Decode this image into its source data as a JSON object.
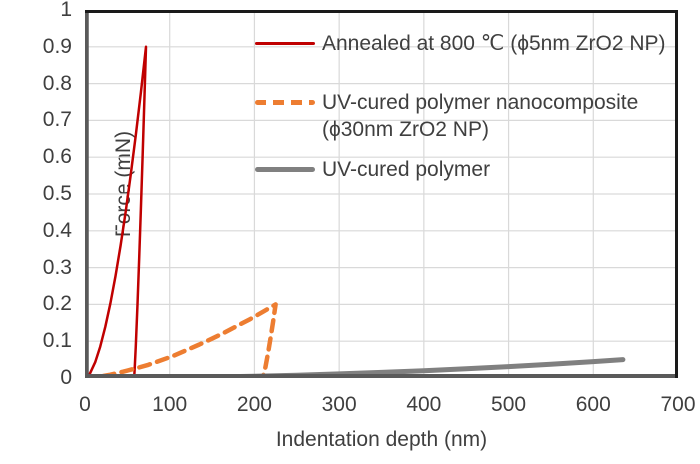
{
  "chart_data": {
    "type": "line",
    "title": "",
    "xlabel": "Indentation depth (nm)",
    "ylabel": "Force (mN)",
    "xlim": [
      0,
      700
    ],
    "ylim": [
      0,
      1
    ],
    "x_ticks": [
      "0",
      "100",
      "200",
      "300",
      "400",
      "500",
      "600",
      "700"
    ],
    "y_ticks": [
      "0",
      "0.1",
      "0.2",
      "0.3",
      "0.4",
      "0.5",
      "0.6",
      "0.7",
      "0.8",
      "0.9",
      "1"
    ],
    "grid": true,
    "gridline_color": "#d9d9d9",
    "axis_line_color": "#5a5a5a",
    "border_color": "#1a1a1a",
    "text_color": "#3f3f3f",
    "legend_position": "inside-top-right",
    "legend_items": [
      {
        "line1": "Annealed at 800 ℃ (ϕ5nm ZrO2 NP)",
        "line2": ""
      },
      {
        "line1": "UV-cured polymer nanocomposite",
        "line2": "(ϕ30nm ZrO2 NP)"
      },
      {
        "line1": "UV-cured polymer",
        "line2": ""
      }
    ],
    "series": [
      {
        "name": "Annealed at 800 ℃ (ϕ5nm ZrO2 NP)",
        "color": "#c00000",
        "style": "solid",
        "width": 2.5,
        "description": "loading to peak 0.9 mN at 72 nm, then steep unloading to 58 nm",
        "points": [
          [
            0,
            0
          ],
          [
            6,
            0.013
          ],
          [
            12,
            0.043
          ],
          [
            18,
            0.085
          ],
          [
            24,
            0.139
          ],
          [
            30,
            0.203
          ],
          [
            36,
            0.277
          ],
          [
            42,
            0.36
          ],
          [
            48,
            0.452
          ],
          [
            54,
            0.552
          ],
          [
            60,
            0.66
          ],
          [
            66,
            0.776
          ],
          [
            72,
            0.9
          ],
          [
            70,
            0.748
          ],
          [
            68,
            0.601
          ],
          [
            66,
            0.46
          ],
          [
            64,
            0.326
          ],
          [
            62,
            0.2
          ],
          [
            60,
            0.087
          ],
          [
            58.5,
            0.02
          ],
          [
            58,
            0
          ]
        ]
      },
      {
        "name": "UV-cured polymer nanocomposite (ϕ30nm ZrO2 NP)",
        "color": "#ed7d31",
        "style": "dashed",
        "width": 4.5,
        "description": "loading to peak 0.2 mN at 225 nm, then steep unloading to 210 nm",
        "points": [
          [
            0,
            0
          ],
          [
            15,
            0.003
          ],
          [
            30,
            0.009
          ],
          [
            45,
            0.017
          ],
          [
            60,
            0.026
          ],
          [
            75,
            0.036
          ],
          [
            90,
            0.048
          ],
          [
            105,
            0.061
          ],
          [
            120,
            0.076
          ],
          [
            135,
            0.091
          ],
          [
            150,
            0.107
          ],
          [
            165,
            0.124
          ],
          [
            180,
            0.142
          ],
          [
            195,
            0.16
          ],
          [
            210,
            0.18
          ],
          [
            225,
            0.2
          ],
          [
            222,
            0.153
          ],
          [
            219,
            0.108
          ],
          [
            216,
            0.067
          ],
          [
            213,
            0.029
          ],
          [
            211,
            0.012
          ],
          [
            210,
            0
          ]
        ]
      },
      {
        "name": "UV-cured polymer",
        "color": "#808080",
        "style": "solid",
        "width": 5,
        "description": "shallow curve reaching 0.05 mN at 635 nm",
        "points": [
          [
            0,
            0
          ],
          [
            50,
            0.0003
          ],
          [
            100,
            0.0012
          ],
          [
            150,
            0.0028
          ],
          [
            200,
            0.005
          ],
          [
            250,
            0.0077
          ],
          [
            300,
            0.0112
          ],
          [
            350,
            0.0152
          ],
          [
            400,
            0.0198
          ],
          [
            450,
            0.0251
          ],
          [
            500,
            0.031
          ],
          [
            550,
            0.0375
          ],
          [
            600,
            0.0446
          ],
          [
            635,
            0.05
          ]
        ]
      }
    ]
  }
}
